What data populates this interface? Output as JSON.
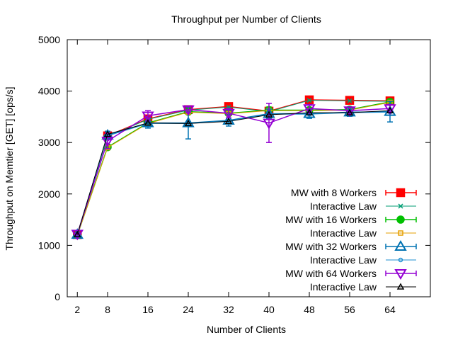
{
  "chart_data": {
    "type": "line",
    "title": "Throughput per Number of Clients",
    "xlabel": "Number of Clients",
    "ylabel": "Throughput on Memtier [GET] [ops/s]",
    "x": [
      2,
      8,
      16,
      24,
      32,
      40,
      48,
      56,
      64
    ],
    "xlim": [
      0,
      72
    ],
    "ylim": [
      0,
      5000
    ],
    "yticks": [
      0,
      1000,
      2000,
      3000,
      4000,
      5000
    ],
    "grid": false,
    "legend_position": "bottom-right",
    "series": [
      {
        "name": "MW with 8 Workers",
        "color": "#ff0000",
        "marker": "filled-square",
        "errorbars": true,
        "values": [
          1210,
          3130,
          3460,
          3640,
          3700,
          3610,
          3830,
          3820,
          3810
        ],
        "err": [
          20,
          60,
          60,
          40,
          40,
          40,
          30,
          30,
          30
        ]
      },
      {
        "name": "Interactive Law",
        "color": "#009e73",
        "marker": "x",
        "values": [
          1200,
          3120,
          3450,
          3630,
          3690,
          3600,
          3820,
          3810,
          3800
        ]
      },
      {
        "name": "MW with 16 Workers",
        "color": "#00c000",
        "marker": "filled-circle",
        "errorbars": true,
        "values": [
          1200,
          2910,
          3380,
          3600,
          3570,
          3630,
          3630,
          3640,
          3790
        ],
        "err": [
          20,
          50,
          60,
          50,
          40,
          60,
          40,
          40,
          40
        ]
      },
      {
        "name": "Interactive Law",
        "color": "#e69f00",
        "marker": "open-square",
        "values": [
          1195,
          2900,
          3370,
          3590,
          3560,
          3620,
          3620,
          3630,
          3780
        ]
      },
      {
        "name": "MW with 32 Workers",
        "color": "#0072b2",
        "marker": "open-triangle",
        "errorbars": true,
        "values": [
          1210,
          3140,
          3380,
          3380,
          3430,
          3560,
          3560,
          3590,
          3600
        ],
        "err": [
          20,
          80,
          100,
          310,
          110,
          90,
          90,
          80,
          200
        ]
      },
      {
        "name": "Interactive Law",
        "color": "#1e8fd0",
        "marker": "small-circle",
        "values": [
          1205,
          3130,
          3370,
          3370,
          3420,
          3550,
          3550,
          3580,
          3590
        ]
      },
      {
        "name": "MW with 64 Workers",
        "color": "#9400d3",
        "marker": "open-down-triangle",
        "errorbars": true,
        "values": [
          1220,
          3030,
          3520,
          3640,
          3570,
          3380,
          3660,
          3620,
          3660
        ],
        "err": [
          20,
          150,
          100,
          60,
          90,
          380,
          80,
          70,
          80
        ]
      },
      {
        "name": "Interactive Law",
        "color": "#000000",
        "marker": "small-triangle",
        "values": [
          1210,
          3160,
          3380,
          3370,
          3410,
          3540,
          3580,
          3580,
          3620
        ]
      }
    ]
  }
}
